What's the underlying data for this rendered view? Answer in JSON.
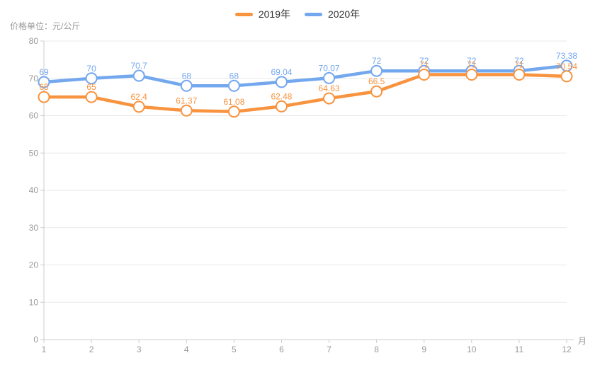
{
  "legend": {
    "items": [
      {
        "label": "2019年",
        "color": "#f8933f"
      },
      {
        "label": "2020年",
        "color": "#73a7ee"
      }
    ]
  },
  "axes": {
    "y_name": "价格单位：元/公斤",
    "x_name": "月",
    "y_ticks": [
      "0",
      "10",
      "20",
      "30",
      "40",
      "50",
      "60",
      "70",
      "80"
    ],
    "x_ticks": [
      "1",
      "2",
      "3",
      "4",
      "5",
      "6",
      "7",
      "8",
      "9",
      "10",
      "11",
      "12"
    ]
  },
  "chart_data": {
    "type": "line",
    "title": "",
    "categories": [
      1,
      2,
      3,
      4,
      5,
      6,
      7,
      8,
      9,
      10,
      11,
      12
    ],
    "xlabel": "月",
    "ylabel": "价格单位：元/公斤",
    "ylim": [
      0,
      80
    ],
    "grid": true,
    "legend_position": "top",
    "point_style": "empty-circle",
    "data_labels": true,
    "series": [
      {
        "name": "2019年",
        "color": "#f8933f",
        "values": [
          65,
          65,
          62.4,
          61.37,
          61.08,
          62.48,
          64.63,
          66.5,
          71,
          71,
          71,
          70.54
        ]
      },
      {
        "name": "2020年",
        "color": "#73a7ee",
        "values": [
          69,
          70,
          70.7,
          68,
          68,
          69.04,
          70.07,
          72,
          72,
          72,
          72,
          73.38
        ]
      }
    ]
  },
  "style": {
    "background": "#ffffff",
    "axis_line_color": "#cccccc",
    "grid_line_color": "#e9e9e9",
    "tick_label_color": "#999999",
    "axis_name_color": "#999999",
    "legend_text_color": "#333333"
  }
}
